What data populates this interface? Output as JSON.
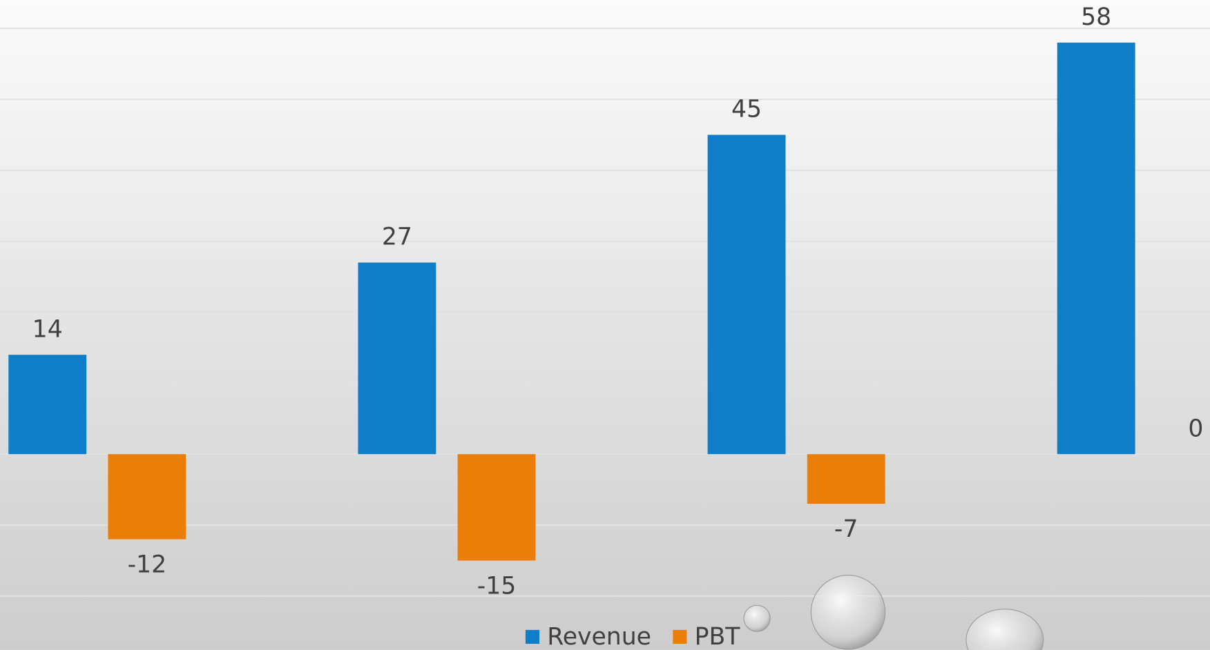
{
  "chart_data": {
    "type": "bar",
    "categories": [
      null,
      null,
      null,
      null
    ],
    "series": [
      {
        "name": "Revenue",
        "color": "#0f7dc7",
        "values": [
          14,
          27,
          45,
          58
        ]
      },
      {
        "name": "PBT",
        "color": "#ea7e09",
        "values": [
          -12,
          -15,
          -7,
          0
        ]
      }
    ],
    "ylim": [
      -27.6,
      64
    ],
    "yticks": [
      -20,
      -10,
      0,
      10,
      20,
      30,
      40,
      50,
      60
    ],
    "grid": true,
    "legend": "bottom"
  }
}
